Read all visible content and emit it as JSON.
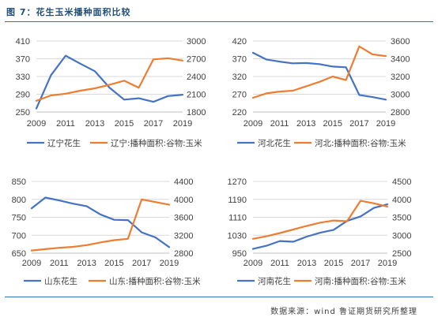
{
  "header": {
    "title": "图 7：花生玉米播种面积比较",
    "source": "数据来源：wind 鲁证期货研究所整理"
  },
  "colors": {
    "peanut": "#4472c4",
    "corn": "#ed7d31"
  },
  "chart_data": [
    {
      "type": "line",
      "x": [
        2009,
        2010,
        2011,
        2012,
        2013,
        2014,
        2015,
        2016,
        2017,
        2018,
        2019
      ],
      "xticks": [
        "2009",
        "2011",
        "2013",
        "2015",
        "2017",
        "2019"
      ],
      "y_left_ticks": [
        250,
        290,
        330,
        370,
        410
      ],
      "y_right_ticks": [
        1800,
        2100,
        2400,
        2700,
        3000
      ],
      "ylim_left": [
        250,
        410
      ],
      "ylim_right": [
        1800,
        3000
      ],
      "series": [
        {
          "name": "辽宁花生",
          "axis": "left",
          "values": [
            258,
            333,
            377,
            359,
            342,
            305,
            278,
            281,
            273,
            286,
            289
          ]
        },
        {
          "name": "辽宁:播种面积:谷物:玉米",
          "axis": "right",
          "values": [
            1990,
            2080,
            2110,
            2160,
            2200,
            2260,
            2330,
            2210,
            2690,
            2710,
            2670
          ]
        }
      ]
    },
    {
      "type": "line",
      "x": [
        2009,
        2010,
        2011,
        2012,
        2013,
        2014,
        2015,
        2016,
        2017,
        2018,
        2019
      ],
      "xticks": [
        "2009",
        "2011",
        "2013",
        "2015",
        "2017",
        "2019"
      ],
      "y_left_ticks": [
        220,
        270,
        320,
        370,
        420
      ],
      "y_right_ticks": [
        2800,
        3000,
        3200,
        3400,
        3600
      ],
      "ylim_left": [
        220,
        420
      ],
      "ylim_right": [
        2800,
        3600
      ],
      "series": [
        {
          "name": "河北花生",
          "axis": "left",
          "values": [
            387,
            368,
            362,
            357,
            358,
            355,
            348,
            346,
            268,
            262,
            255
          ]
        },
        {
          "name": "河北:播种面积:谷物:玉米",
          "axis": "right",
          "values": [
            2960,
            3010,
            3030,
            3040,
            3090,
            3140,
            3200,
            3160,
            3540,
            3450,
            3430
          ]
        }
      ]
    },
    {
      "type": "line",
      "x": [
        2009,
        2010,
        2011,
        2012,
        2013,
        2014,
        2015,
        2016,
        2017,
        2018,
        2019
      ],
      "xticks": [
        "2009",
        "2011",
        "2013",
        "2015",
        "2017",
        "2019"
      ],
      "y_left_ticks": [
        650,
        700,
        750,
        800,
        850
      ],
      "y_right_ticks": [
        2800,
        3200,
        3600,
        4000,
        4400
      ],
      "ylim_left": [
        650,
        850
      ],
      "ylim_right": [
        2800,
        4400
      ],
      "series": [
        {
          "name": "山东花生",
          "axis": "left",
          "values": [
            775,
            805,
            797,
            788,
            781,
            758,
            743,
            742,
            708,
            694,
            667
          ]
        },
        {
          "name": "山东:播种面积:谷物:玉米",
          "axis": "right",
          "values": [
            2860,
            2890,
            2920,
            2940,
            2980,
            3040,
            3090,
            3120,
            4000,
            3940,
            3880
          ]
        }
      ]
    },
    {
      "type": "line",
      "x": [
        2009,
        2010,
        2011,
        2012,
        2013,
        2014,
        2015,
        2016,
        2017,
        2018,
        2019
      ],
      "xticks": [
        "2009",
        "2011",
        "2013",
        "2015",
        "2017",
        "2019"
      ],
      "y_left_ticks": [
        950,
        1030,
        1110,
        1190,
        1270
      ],
      "y_right_ticks": [
        2500,
        3000,
        3500,
        4000,
        4500
      ],
      "ylim_left": [
        950,
        1270
      ],
      "ylim_right": [
        2500,
        4500
      ],
      "series": [
        {
          "name": "河南花生",
          "axis": "left",
          "values": [
            969,
            983,
            1004,
            1001,
            1024,
            1041,
            1054,
            1094,
            1114,
            1152,
            1168
          ]
        },
        {
          "name": "河南:播种面积:谷物:玉米",
          "axis": "right",
          "values": [
            2900,
            2970,
            3060,
            3160,
            3260,
            3350,
            3410,
            3390,
            3960,
            3890,
            3800
          ]
        }
      ]
    }
  ]
}
